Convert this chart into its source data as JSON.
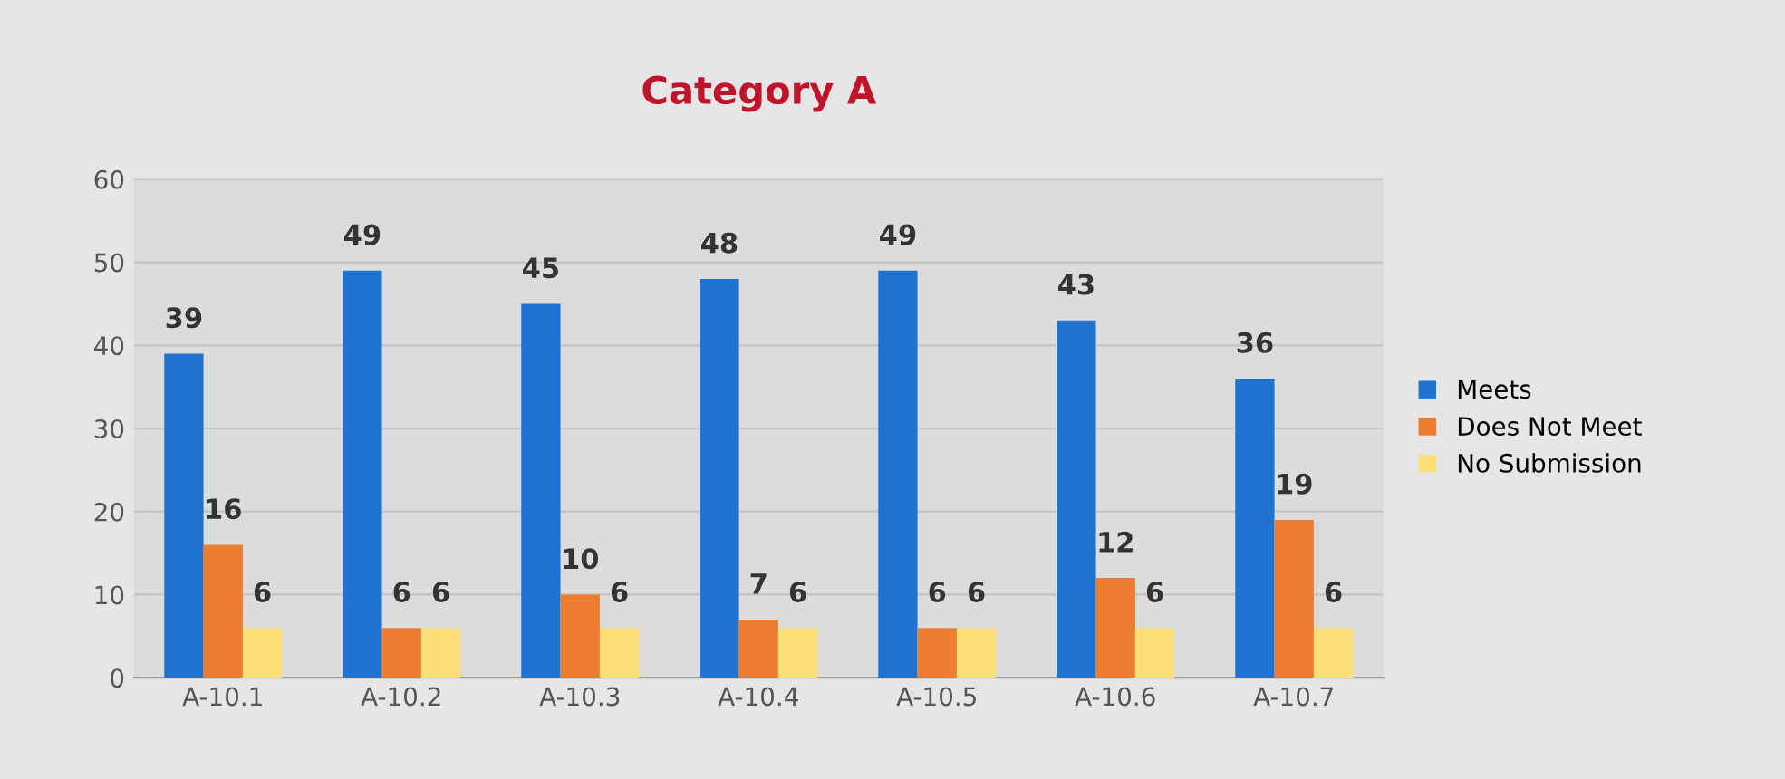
{
  "chart_data": {
    "type": "bar",
    "title": "Category A",
    "categories": [
      "A-10.1",
      "A-10.2",
      "A-10.3",
      "A-10.4",
      "A-10.5",
      "A-10.6",
      "A-10.7"
    ],
    "series": [
      {
        "name": "Meets",
        "color": "#1f74d1",
        "values": [
          39,
          49,
          45,
          48,
          49,
          43,
          36
        ]
      },
      {
        "name": "Does Not Meet",
        "color": "#ed7d31",
        "values": [
          16,
          6,
          10,
          7,
          6,
          12,
          19
        ]
      },
      {
        "name": "No Submission",
        "color": "#fbe07a",
        "values": [
          6,
          6,
          6,
          6,
          6,
          6,
          6
        ]
      }
    ],
    "ylim": [
      0,
      60
    ],
    "yticks": [
      0,
      10,
      20,
      30,
      40,
      50,
      60
    ],
    "grid": "y",
    "legend": "right",
    "data_labels": true
  }
}
